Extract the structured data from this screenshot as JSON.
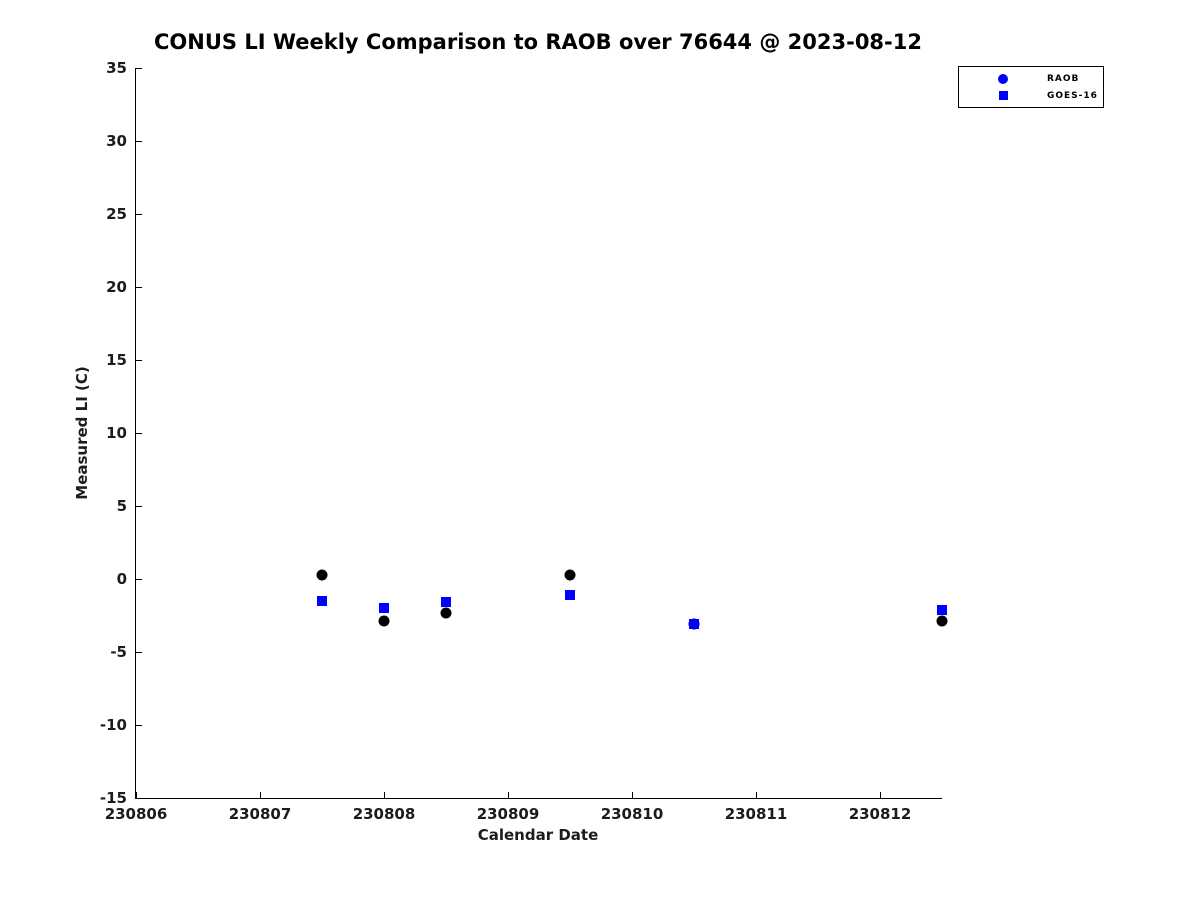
{
  "title": "CONUS LI Weekly Comparison to RAOB over 76644 @ 2023-08-12",
  "colors": {
    "background": "#ffffff",
    "axis": "#000000",
    "tick_text": "#1c1c1c",
    "raob_data_marker": "#000000",
    "goes_data_marker": "#0000ff",
    "legend_marker_blue": "#0000ff"
  },
  "chart_data": {
    "type": "scatter",
    "title": "CONUS LI Weekly Comparison to RAOB over 76644 @ 2023-08-12",
    "xlabel": "Calendar Date",
    "ylabel": "Measured LI (C)",
    "xlim": [
      230806,
      230812.5
    ],
    "ylim": [
      -15,
      35
    ],
    "x_ticks": [
      230806,
      230807,
      230808,
      230809,
      230810,
      230811,
      230812
    ],
    "y_ticks": [
      35,
      30,
      25,
      20,
      15,
      10,
      5,
      0,
      -5,
      -10,
      -15
    ],
    "grid": false,
    "legend_position": "top-right",
    "legend_entries": [
      "RAOB",
      "GOES-16"
    ],
    "series": [
      {
        "name": "RAOB",
        "marker": "circle",
        "color": "#000000",
        "legend_color": "#0000ff",
        "points": [
          [
            230807.5,
            0.3
          ],
          [
            230808.0,
            -2.9
          ],
          [
            230808.5,
            -2.3
          ],
          [
            230809.5,
            0.3
          ],
          [
            230810.5,
            -3.1
          ],
          [
            230812.5,
            -2.9
          ]
        ]
      },
      {
        "name": "GOES-16",
        "marker": "square",
        "color": "#0000ff",
        "legend_color": "#0000ff",
        "points": [
          [
            230807.5,
            -1.5
          ],
          [
            230808.0,
            -2.0
          ],
          [
            230808.5,
            -1.6
          ],
          [
            230809.5,
            -1.1
          ],
          [
            230810.5,
            -3.1
          ],
          [
            230812.5,
            -2.1
          ]
        ]
      }
    ]
  }
}
